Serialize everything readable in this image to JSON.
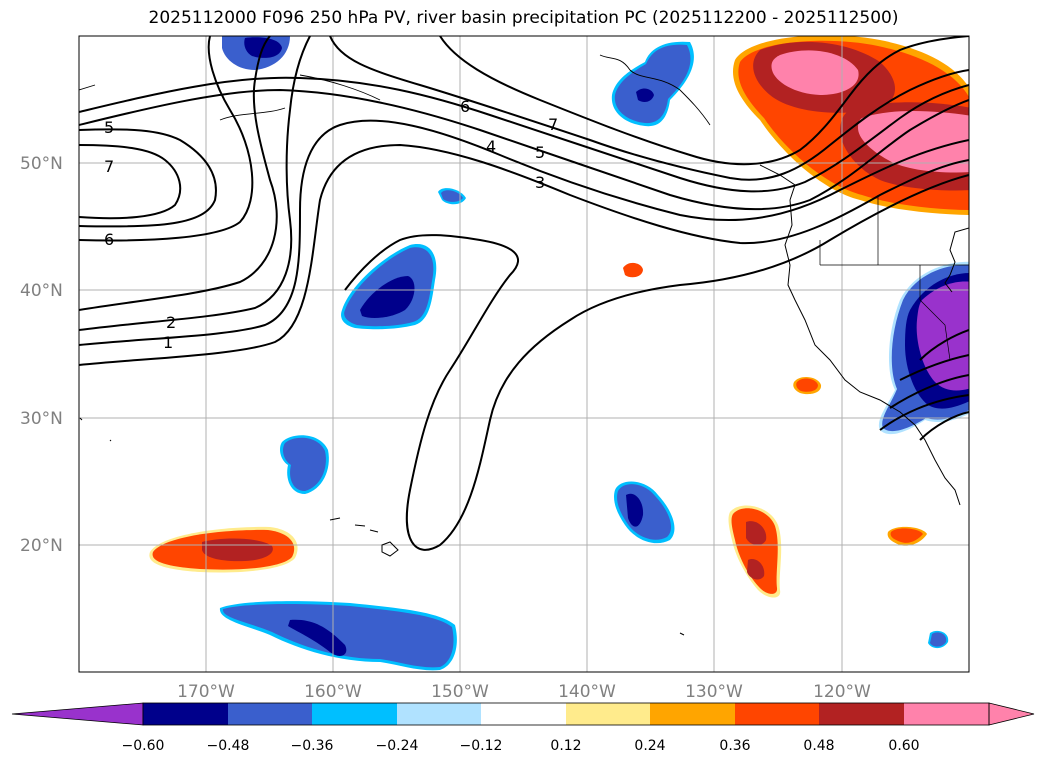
{
  "title": "2025112000 F096 250 hPa PV, river basin precipitation PC (2025112200 - 2025112500)",
  "lat_ticks": [
    "50°N",
    "40°N",
    "30°N",
    "20°N"
  ],
  "lon_ticks": [
    "170°W",
    "160°W",
    "150°W",
    "140°W",
    "130°W",
    "120°W"
  ],
  "colorbar": {
    "ticks": [
      "−0.60",
      "−0.48",
      "−0.36",
      "−0.24",
      "−0.12",
      "0.12",
      "0.24",
      "0.36",
      "0.48",
      "0.60"
    ],
    "colors": {
      "purple": "#9932cc",
      "darkblue": "#00008b",
      "royalblue": "#3a5fcd",
      "deepskyblue": "#00bfff",
      "lightblue": "#b0e2ff",
      "white": "#ffffff",
      "yellow": "#ffeb8c",
      "orange": "#ffa500",
      "orangered": "#ff4500",
      "firebrick": "#b22222",
      "pink": "#ff82ab"
    }
  },
  "contour_labels": [
    "5",
    "7",
    "6",
    "2",
    "1",
    "6",
    "7",
    "4",
    "5",
    "3"
  ]
}
